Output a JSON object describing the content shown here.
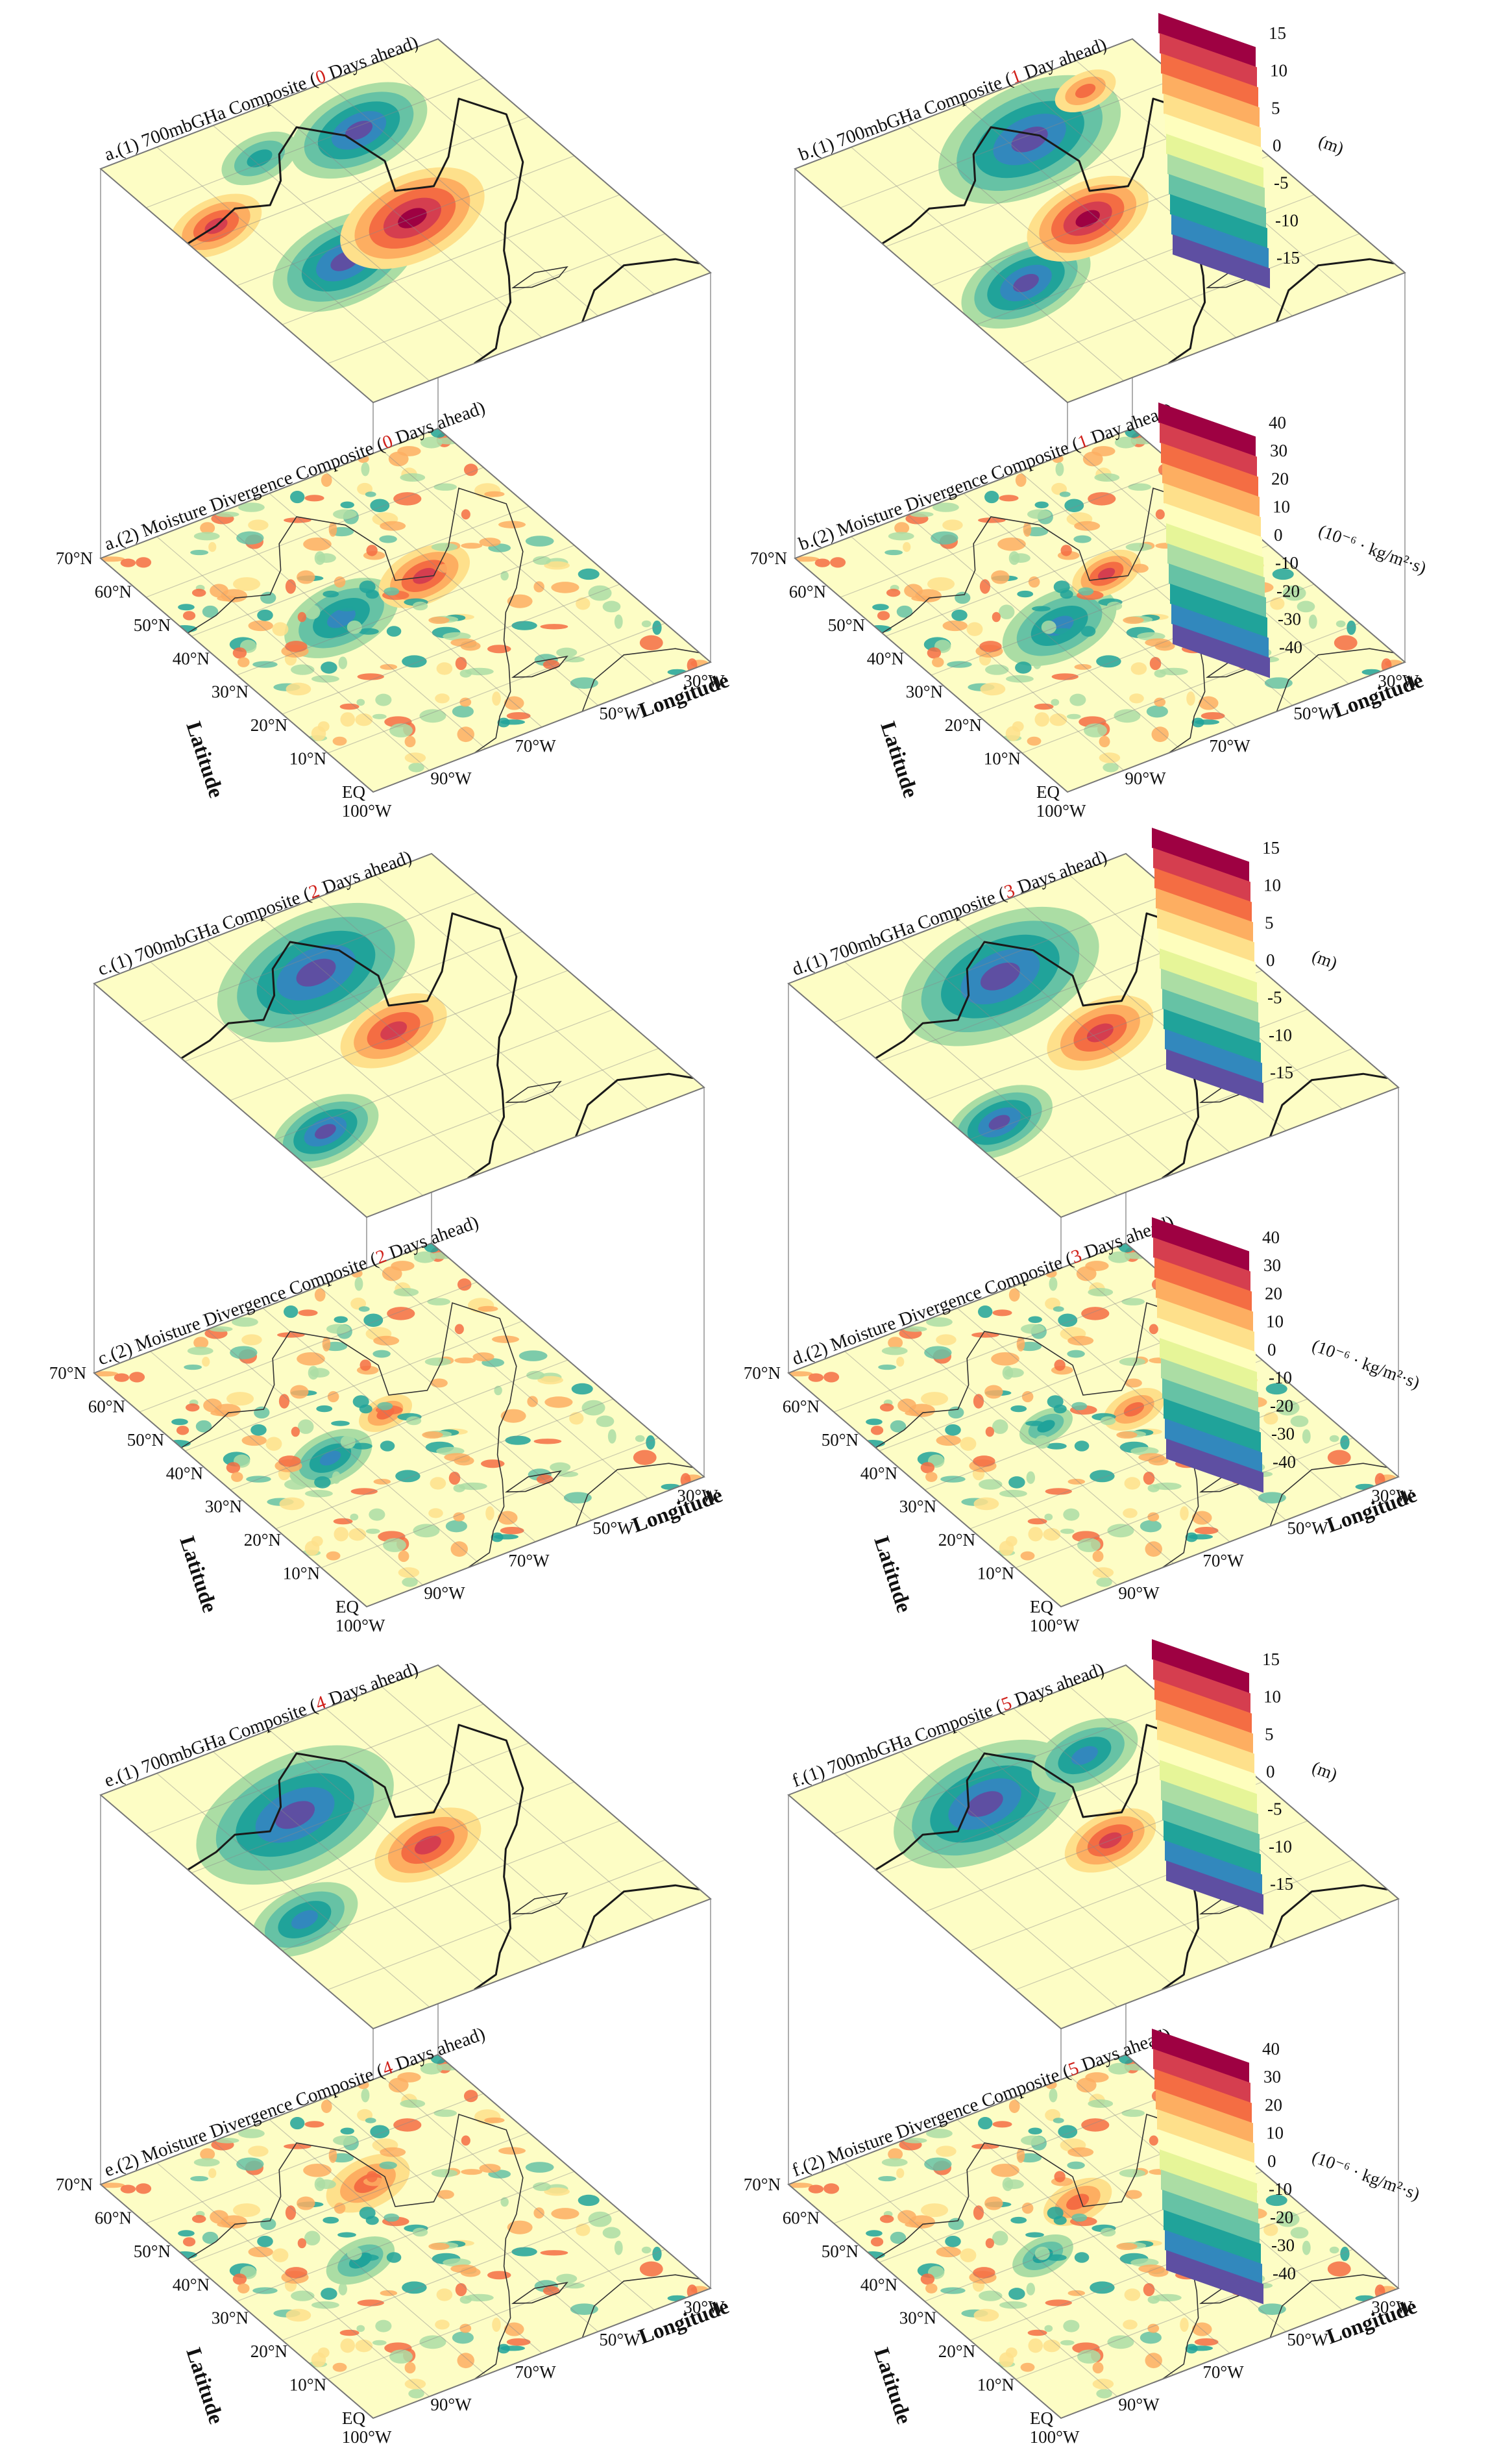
{
  "figure": {
    "colors": {
      "ghta_scale": [
        "#5e4fa2",
        "#3288bd",
        "#20a39a",
        "#66c2a5",
        "#abdda4",
        "#e6f598",
        "#fefebd",
        "#fee08b",
        "#fdae61",
        "#f46d43",
        "#d53e4f",
        "#9e0142"
      ],
      "mdiv_scale": [
        "#5e4fa2",
        "#3288bd",
        "#20a39a",
        "#66c2a5",
        "#abdda4",
        "#e6f598",
        "#fefebd",
        "#fee08b",
        "#fdae61",
        "#f46d43",
        "#d53e4f",
        "#9e0142"
      ],
      "highlight_number": "#d0201a"
    },
    "colorbars": {
      "ghta": {
        "ticks": [
          "15",
          "10",
          "5",
          "0",
          "-5",
          "-10",
          "-15"
        ],
        "unit": "(m)"
      },
      "mdiv": {
        "ticks": [
          "40",
          "30",
          "20",
          "10",
          "0",
          "-10",
          "-20",
          "-30",
          "-40"
        ],
        "unit": "(10⁻⁶ · kg/m²·s)"
      }
    },
    "axes": {
      "latitude_label": "Latitude",
      "longitude_label": "Longitude",
      "lat_ticks": [
        "70°N",
        "60°N",
        "50°N",
        "40°N",
        "30°N",
        "20°N",
        "10°N",
        "EQ"
      ],
      "lon_ticks": [
        "100°W",
        "90°W",
        "70°W",
        "50°W",
        "30°W"
      ]
    },
    "panels": [
      {
        "letter": "a",
        "lead": "0",
        "top": {
          "prefix": "a.(1) 700mbGHa Composite  (",
          "suffix": " Days ahead)"
        },
        "bottom": {
          "prefix": "a.(2) Moisture Divergence Composite (",
          "suffix": " Days ahead)"
        }
      },
      {
        "letter": "b",
        "lead": "1",
        "top": {
          "prefix": "b.(1) 700mbGHa Composite (",
          "suffix": " Day ahead)"
        },
        "bottom": {
          "prefix": "b.(2) Moisture Divergence Composite (",
          "suffix": " Day ahead)"
        }
      },
      {
        "letter": "c",
        "lead": "2",
        "top": {
          "prefix": "c.(1) 700mbGHa Composite  (",
          "suffix": " Days ahead)"
        },
        "bottom": {
          "prefix": "c.(2) Moisture Divergence Composite (",
          "suffix": " Days ahead)"
        }
      },
      {
        "letter": "d",
        "lead": "3",
        "top": {
          "prefix": "d.(1) 700mbGHa Composite (",
          "suffix": " Days ahead)"
        },
        "bottom": {
          "prefix": "d.(2) Moisture Divergence Composite (",
          "suffix": " Days ahead)"
        }
      },
      {
        "letter": "e",
        "lead": "4",
        "top": {
          "prefix": "e.(1) 700mbGHa Composite  (",
          "suffix": " Days ahead)"
        },
        "bottom": {
          "prefix": "e.(2) Moisture Divergence Composite (",
          "suffix": " Days ahead)"
        }
      },
      {
        "letter": "f",
        "lead": "5",
        "top": {
          "prefix": "f.(1) 700mbGHa Composite (",
          "suffix": " Days ahead)"
        },
        "bottom": {
          "prefix": "f.(2) Moisture Divergence Composite (",
          "suffix": " Days ahead)"
        }
      }
    ]
  },
  "chart_data": [
    {
      "type": "heatmap",
      "panel": "a.(1)",
      "variable": "700mb geopotential height anomaly",
      "lead_days": 0,
      "unit": "m",
      "range": [
        -15,
        15
      ],
      "anomaly_centers": [
        {
          "sign": "negative",
          "approx_lon": -132,
          "approx_lat": 42,
          "value": -15
        },
        {
          "sign": "positive",
          "approx_lon": -98,
          "approx_lat": 48,
          "value": 15
        },
        {
          "sign": "negative",
          "approx_lon": -75,
          "approx_lat": 62,
          "value": -15
        },
        {
          "sign": "negative",
          "approx_lon": -108,
          "approx_lat": 68,
          "value": -10
        },
        {
          "sign": "positive",
          "approx_lon": -150,
          "approx_lat": 58,
          "value": 15
        }
      ]
    },
    {
      "type": "heatmap",
      "panel": "a.(2)",
      "variable": "moisture divergence",
      "lead_days": 0,
      "unit": "10^-6 kg/m^2 s",
      "range": [
        -40,
        40
      ],
      "anomaly_centers": [
        {
          "sign": "negative",
          "approx_lon": -103,
          "approx_lat": 52,
          "value": -40
        },
        {
          "sign": "positive",
          "approx_lon": -82,
          "approx_lat": 48,
          "value": 40
        }
      ]
    },
    {
      "type": "heatmap",
      "panel": "b.(1)",
      "variable": "700mb geopotential height anomaly",
      "lead_days": 1,
      "unit": "m",
      "range": [
        -15,
        15
      ],
      "anomaly_centers": [
        {
          "sign": "negative",
          "approx_lon": -125,
          "approx_lat": 42,
          "value": -15
        },
        {
          "sign": "positive",
          "approx_lon": -95,
          "approx_lat": 47,
          "value": 15
        },
        {
          "sign": "negative",
          "approx_lon": -90,
          "approx_lat": 68,
          "value": -15
        },
        {
          "sign": "positive",
          "approx_lon": -55,
          "approx_lat": 75,
          "value": 10
        }
      ]
    },
    {
      "type": "heatmap",
      "panel": "b.(2)",
      "variable": "moisture divergence",
      "lead_days": 1,
      "unit": "10^-6 kg/m^2 s",
      "range": [
        -40,
        40
      ],
      "anomaly_centers": [
        {
          "sign": "negative",
          "approx_lon": -100,
          "approx_lat": 50,
          "value": -40
        },
        {
          "sign": "positive",
          "approx_lon": -83,
          "approx_lat": 47,
          "value": 30
        }
      ]
    },
    {
      "type": "heatmap",
      "panel": "c.(1)",
      "variable": "700mb geopotential height anomaly",
      "lead_days": 2,
      "unit": "m",
      "range": [
        -15,
        15
      ],
      "anomaly_centers": [
        {
          "sign": "negative",
          "approx_lon": -95,
          "approx_lat": 68,
          "value": -15
        },
        {
          "sign": "positive",
          "approx_lon": -95,
          "approx_lat": 46,
          "value": 10
        },
        {
          "sign": "negative",
          "approx_lon": -130,
          "approx_lat": 40,
          "value": -15
        }
      ]
    },
    {
      "type": "heatmap",
      "panel": "c.(2)",
      "variable": "moisture divergence",
      "lead_days": 2,
      "unit": "10^-6 kg/m^2 s",
      "range": [
        -40,
        40
      ],
      "anomaly_centers": [
        {
          "sign": "negative",
          "approx_lon": -105,
          "approx_lat": 50,
          "value": -40
        },
        {
          "sign": "positive",
          "approx_lon": -85,
          "approx_lat": 45,
          "value": 20
        }
      ]
    },
    {
      "type": "heatmap",
      "panel": "d.(1)",
      "variable": "700mb geopotential height anomaly",
      "lead_days": 3,
      "unit": "m",
      "range": [
        -15,
        15
      ],
      "anomaly_centers": [
        {
          "sign": "negative",
          "approx_lon": -95,
          "approx_lat": 68,
          "value": -15
        },
        {
          "sign": "positive",
          "approx_lon": -98,
          "approx_lat": 46,
          "value": 10
        },
        {
          "sign": "negative",
          "approx_lon": -132,
          "approx_lat": 42,
          "value": -15
        }
      ]
    },
    {
      "type": "heatmap",
      "panel": "d.(2)",
      "variable": "moisture divergence",
      "lead_days": 3,
      "unit": "10^-6 kg/m^2 s",
      "range": [
        -40,
        40
      ],
      "anomaly_centers": [
        {
          "sign": "negative",
          "approx_lon": -100,
          "approx_lat": 52,
          "value": -30
        },
        {
          "sign": "positive",
          "approx_lon": -82,
          "approx_lat": 45,
          "value": 30
        }
      ]
    },
    {
      "type": "heatmap",
      "panel": "e.(1)",
      "variable": "700mb geopotential height anomaly",
      "lead_days": 4,
      "unit": "m",
      "range": [
        -15,
        15
      ],
      "anomaly_centers": [
        {
          "sign": "negative",
          "approx_lon": -105,
          "approx_lat": 66,
          "value": -15
        },
        {
          "sign": "positive",
          "approx_lon": -97,
          "approx_lat": 46,
          "value": 10
        },
        {
          "sign": "negative",
          "approx_lon": -130,
          "approx_lat": 42,
          "value": -10
        }
      ]
    },
    {
      "type": "heatmap",
      "panel": "e.(2)",
      "variable": "moisture divergence",
      "lead_days": 4,
      "unit": "10^-6 kg/m^2 s",
      "range": [
        -40,
        40
      ],
      "anomaly_centers": [
        {
          "sign": "negative",
          "approx_lon": -102,
          "approx_lat": 50,
          "value": -30
        },
        {
          "sign": "positive",
          "approx_lon": -80,
          "approx_lat": 52,
          "value": 30
        }
      ]
    },
    {
      "type": "heatmap",
      "panel": "f.(1)",
      "variable": "700mb geopotential height anomaly",
      "lead_days": 5,
      "unit": "m",
      "range": [
        -15,
        15
      ],
      "anomaly_centers": [
        {
          "sign": "negative",
          "approx_lon": -110,
          "approx_lat": 64,
          "value": -15
        },
        {
          "sign": "positive",
          "approx_lon": -96,
          "approx_lat": 47,
          "value": 10
        },
        {
          "sign": "negative",
          "approx_lon": -80,
          "approx_lat": 68,
          "value": -10
        }
      ]
    },
    {
      "type": "heatmap",
      "panel": "f.(2)",
      "variable": "moisture divergence",
      "lead_days": 5,
      "unit": "10^-6 kg/m^2 s",
      "range": [
        -40,
        40
      ],
      "anomaly_centers": [
        {
          "sign": "negative",
          "approx_lon": -100,
          "approx_lat": 52,
          "value": -30
        },
        {
          "sign": "positive",
          "approx_lon": -85,
          "approx_lat": 50,
          "value": 30
        }
      ]
    }
  ]
}
